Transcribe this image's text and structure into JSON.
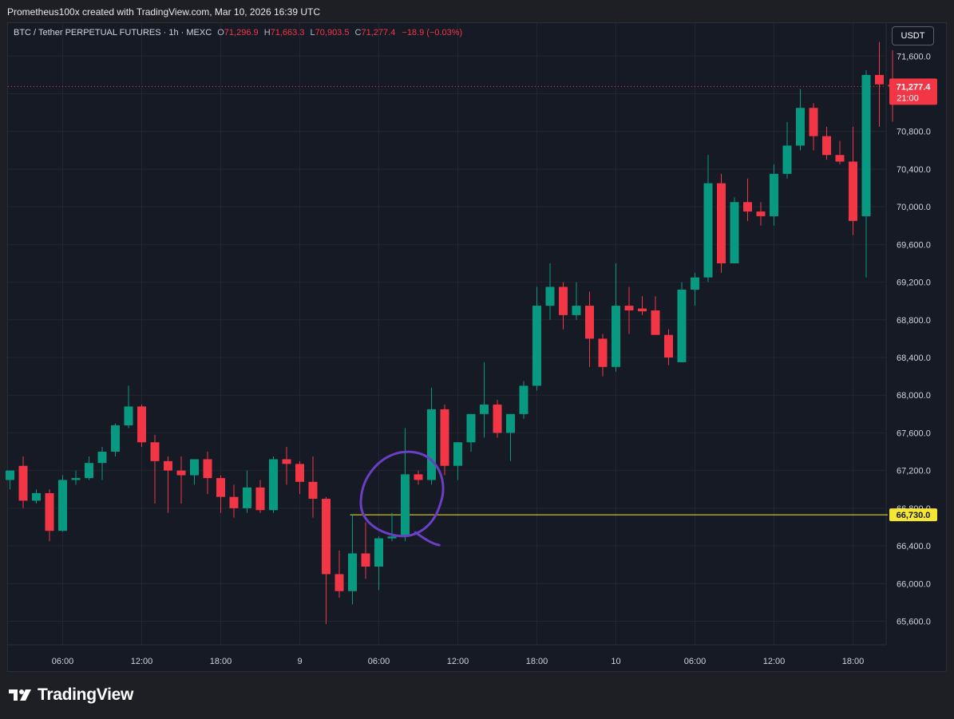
{
  "header": {
    "attribution": "Prometheus100x created with TradingView.com, Mar 10, 2026 16:39 UTC"
  },
  "legend": {
    "symbol": "BTC / Tether PERPETUAL FUTURES · 1h · MEXC",
    "o_label": "O",
    "o_value": "71,296.9",
    "h_label": "H",
    "h_value": "71,663.3",
    "l_label": "L",
    "l_value": "70,903.5",
    "c_label": "C",
    "c_value": "71,277.4",
    "change": "−18.9 (−0.03%)"
  },
  "currency_button": "USDT",
  "brand": {
    "name": "TradingView"
  },
  "colors": {
    "up": "#089981",
    "down": "#f23645",
    "background": "#161a25",
    "grid": "#232632",
    "level_line": "#f5e633",
    "annotation": "#6a3fc4",
    "axis_text": "#d1d4dc"
  },
  "chart_data": {
    "type": "candlestick",
    "timeframe": "1h",
    "ylim": [
      65350,
      71950
    ],
    "y_ticks": [
      65600,
      66000,
      66400,
      66800,
      67200,
      67600,
      68000,
      68400,
      68800,
      69200,
      69600,
      70000,
      70400,
      70800,
      71200,
      71600
    ],
    "y_tick_labels": [
      "65,600.0",
      "66,000.0",
      "66,400.0",
      "66,800.0",
      "67,200.0",
      "67,600.0",
      "68,000.0",
      "68,400.0",
      "68,800.0",
      "69,200.0",
      "69,600.0",
      "70,000.0",
      "70,400.0",
      "70,800.0",
      "71,200.0",
      "71,600.0"
    ],
    "x_ticks": [
      {
        "index": 4,
        "label": "06:00"
      },
      {
        "index": 10,
        "label": "12:00"
      },
      {
        "index": 16,
        "label": "18:00"
      },
      {
        "index": 22,
        "label": "9"
      },
      {
        "index": 28,
        "label": "06:00"
      },
      {
        "index": 34,
        "label": "12:00"
      },
      {
        "index": 40,
        "label": "18:00"
      },
      {
        "index": 46,
        "label": "10"
      },
      {
        "index": 52,
        "label": "06:00"
      },
      {
        "index": 58,
        "label": "12:00"
      },
      {
        "index": 64,
        "label": "18:00"
      }
    ],
    "candles": [
      {
        "o": 67100,
        "h": 67200,
        "l": 67000,
        "c": 67200
      },
      {
        "o": 67250,
        "h": 67350,
        "l": 66800,
        "c": 66880
      },
      {
        "o": 66880,
        "h": 67000,
        "l": 66850,
        "c": 66960
      },
      {
        "o": 66960,
        "h": 67000,
        "l": 66450,
        "c": 66560
      },
      {
        "o": 66560,
        "h": 67150,
        "l": 66550,
        "c": 67100
      },
      {
        "o": 67100,
        "h": 67200,
        "l": 67050,
        "c": 67120
      },
      {
        "o": 67120,
        "h": 67350,
        "l": 67100,
        "c": 67280
      },
      {
        "o": 67280,
        "h": 67450,
        "l": 67100,
        "c": 67400
      },
      {
        "o": 67400,
        "h": 67700,
        "l": 67350,
        "c": 67680
      },
      {
        "o": 67680,
        "h": 68100,
        "l": 67650,
        "c": 67880
      },
      {
        "o": 67880,
        "h": 67900,
        "l": 67450,
        "c": 67500
      },
      {
        "o": 67500,
        "h": 67580,
        "l": 66850,
        "c": 67300
      },
      {
        "o": 67300,
        "h": 67350,
        "l": 66750,
        "c": 67200
      },
      {
        "o": 67200,
        "h": 67350,
        "l": 66850,
        "c": 67150
      },
      {
        "o": 67150,
        "h": 67300,
        "l": 67050,
        "c": 67320
      },
      {
        "o": 67320,
        "h": 67400,
        "l": 66950,
        "c": 67120
      },
      {
        "o": 67120,
        "h": 67150,
        "l": 66750,
        "c": 66920
      },
      {
        "o": 66920,
        "h": 67050,
        "l": 66700,
        "c": 66800
      },
      {
        "o": 66800,
        "h": 67200,
        "l": 66750,
        "c": 67020
      },
      {
        "o": 67020,
        "h": 67100,
        "l": 66750,
        "c": 66780
      },
      {
        "o": 66780,
        "h": 67350,
        "l": 66750,
        "c": 67320
      },
      {
        "o": 67320,
        "h": 67450,
        "l": 67050,
        "c": 67270
      },
      {
        "o": 67270,
        "h": 67300,
        "l": 66950,
        "c": 67080
      },
      {
        "o": 67080,
        "h": 67350,
        "l": 66700,
        "c": 66900
      },
      {
        "o": 66900,
        "h": 66920,
        "l": 65570,
        "c": 66100
      },
      {
        "o": 66100,
        "h": 66350,
        "l": 65850,
        "c": 65920
      },
      {
        "o": 65920,
        "h": 66730,
        "l": 65780,
        "c": 66320
      },
      {
        "o": 66320,
        "h": 66650,
        "l": 66050,
        "c": 66180
      },
      {
        "o": 66180,
        "h": 66500,
        "l": 65930,
        "c": 66480
      },
      {
        "o": 66480,
        "h": 66750,
        "l": 66450,
        "c": 66500
      },
      {
        "o": 66500,
        "h": 67650,
        "l": 66450,
        "c": 67160
      },
      {
        "o": 67160,
        "h": 67200,
        "l": 67050,
        "c": 67100
      },
      {
        "o": 67100,
        "h": 68080,
        "l": 67050,
        "c": 67850
      },
      {
        "o": 67850,
        "h": 67900,
        "l": 67150,
        "c": 67250
      },
      {
        "o": 67250,
        "h": 67500,
        "l": 67100,
        "c": 67500
      },
      {
        "o": 67500,
        "h": 67750,
        "l": 67400,
        "c": 67800
      },
      {
        "o": 67800,
        "h": 68350,
        "l": 67550,
        "c": 67900
      },
      {
        "o": 67900,
        "h": 67950,
        "l": 67550,
        "c": 67600
      },
      {
        "o": 67600,
        "h": 67800,
        "l": 67300,
        "c": 67800
      },
      {
        "o": 67800,
        "h": 68150,
        "l": 67750,
        "c": 68100
      },
      {
        "o": 68100,
        "h": 69150,
        "l": 68050,
        "c": 68950
      },
      {
        "o": 68950,
        "h": 69400,
        "l": 68800,
        "c": 69150
      },
      {
        "o": 69150,
        "h": 69200,
        "l": 68700,
        "c": 68850
      },
      {
        "o": 68850,
        "h": 69200,
        "l": 68800,
        "c": 68950
      },
      {
        "o": 68950,
        "h": 69100,
        "l": 68300,
        "c": 68600
      },
      {
        "o": 68600,
        "h": 68650,
        "l": 68200,
        "c": 68300
      },
      {
        "o": 68300,
        "h": 69400,
        "l": 68250,
        "c": 68950
      },
      {
        "o": 68950,
        "h": 69150,
        "l": 68650,
        "c": 68900
      },
      {
        "o": 68920,
        "h": 69050,
        "l": 68850,
        "c": 68890
      },
      {
        "o": 68900,
        "h": 69050,
        "l": 68700,
        "c": 68640
      },
      {
        "o": 68640,
        "h": 68700,
        "l": 68320,
        "c": 68400
      },
      {
        "o": 68350,
        "h": 69200,
        "l": 68350,
        "c": 69120
      },
      {
        "o": 69120,
        "h": 69300,
        "l": 68950,
        "c": 69250
      },
      {
        "o": 69250,
        "h": 70550,
        "l": 69200,
        "c": 70250
      },
      {
        "o": 70250,
        "h": 70350,
        "l": 69300,
        "c": 69400
      },
      {
        "o": 69400,
        "h": 70100,
        "l": 69400,
        "c": 70050
      },
      {
        "o": 70050,
        "h": 70300,
        "l": 69850,
        "c": 69950
      },
      {
        "o": 69950,
        "h": 70050,
        "l": 69800,
        "c": 69900
      },
      {
        "o": 69900,
        "h": 70450,
        "l": 69800,
        "c": 70350
      },
      {
        "o": 70350,
        "h": 70900,
        "l": 70300,
        "c": 70650
      },
      {
        "o": 70650,
        "h": 71250,
        "l": 70600,
        "c": 71050
      },
      {
        "o": 71050,
        "h": 71100,
        "l": 70600,
        "c": 70750
      },
      {
        "o": 70750,
        "h": 70850,
        "l": 70500,
        "c": 70550
      },
      {
        "o": 70550,
        "h": 70700,
        "l": 70450,
        "c": 70480
      },
      {
        "o": 70480,
        "h": 70850,
        "l": 69700,
        "c": 69850
      },
      {
        "o": 69900,
        "h": 71450,
        "l": 69250,
        "c": 71400
      },
      {
        "o": 71400,
        "h": 71750,
        "l": 70850,
        "c": 71300
      },
      {
        "o": 71297,
        "h": 71663,
        "l": 70904,
        "c": 71277
      }
    ],
    "last_price": {
      "value": 71277.4,
      "label": "71,277.4",
      "countdown": "21:00"
    },
    "level": {
      "value": 66730,
      "label": "66,730.0",
      "start_index": 26
    },
    "annotation": {
      "type": "hand-drawn circle",
      "center_index": 29.8,
      "center_price": 66950
    }
  }
}
